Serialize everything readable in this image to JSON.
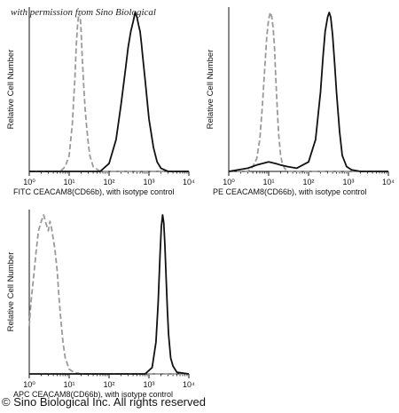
{
  "watermark": "with permission from Sino Biological",
  "copyright": "© Sino Biological Inc. All rights reserved",
  "chart_data": [
    {
      "type": "line",
      "xscale": "log",
      "xlim": [
        1,
        10000
      ],
      "xticks": [
        "10⁰",
        "10¹",
        "10²",
        "10³",
        "10⁴"
      ],
      "ylabel": "Relative Cell Number",
      "xlabel": "FITC  CEACAM8(CD66b),  with isotype control",
      "grid": false,
      "series": [
        {
          "style": "dashed",
          "color": "#9a9a9a",
          "x": [
            1,
            6,
            8,
            10,
            12,
            14,
            15,
            16,
            17,
            18,
            19,
            20,
            21,
            23,
            25,
            27,
            30,
            33,
            40,
            60,
            100,
            10000
          ],
          "y": [
            0,
            0,
            0.03,
            0.1,
            0.3,
            0.6,
            0.78,
            0.9,
            0.97,
            1.0,
            0.97,
            0.88,
            0.75,
            0.55,
            0.4,
            0.3,
            0.18,
            0.1,
            0.03,
            0,
            0,
            0
          ]
        },
        {
          "style": "solid",
          "color": "#111111",
          "x": [
            1,
            60,
            100,
            150,
            200,
            260,
            300,
            350,
            400,
            450,
            500,
            550,
            600,
            650,
            700,
            800,
            900,
            1000,
            1300,
            1600,
            2000,
            3000,
            10000
          ],
          "y": [
            0,
            0,
            0.05,
            0.2,
            0.42,
            0.65,
            0.78,
            0.88,
            0.94,
            1.0,
            0.97,
            0.92,
            0.88,
            0.8,
            0.72,
            0.58,
            0.45,
            0.33,
            0.15,
            0.06,
            0.02,
            0,
            0
          ]
        }
      ]
    },
    {
      "type": "line",
      "xscale": "log",
      "xlim": [
        1,
        10000
      ],
      "xticks": [
        "10⁰",
        "10¹",
        "10²",
        "10³",
        "10⁴"
      ],
      "ylabel": "Relative Cell Number",
      "xlabel": "PE  CEACAM8(CD66b),  with isotype control",
      "grid": false,
      "series": [
        {
          "style": "dashed",
          "color": "#9a9a9a",
          "x": [
            1,
            3,
            4,
            5,
            6,
            7,
            8,
            9,
            10,
            11,
            12,
            13,
            14,
            15,
            16,
            17,
            18,
            20,
            22,
            25,
            30,
            50,
            10000
          ],
          "y": [
            0,
            0,
            0.03,
            0.08,
            0.2,
            0.42,
            0.65,
            0.85,
            0.96,
            1.0,
            0.97,
            0.9,
            0.78,
            0.6,
            0.45,
            0.32,
            0.22,
            0.1,
            0.05,
            0.02,
            0,
            0,
            0
          ]
        },
        {
          "style": "solid",
          "color": "#111111",
          "x": [
            1,
            3,
            5,
            10,
            15,
            20,
            30,
            50,
            100,
            150,
            200,
            230,
            260,
            300,
            330,
            360,
            400,
            450,
            500,
            600,
            700,
            900,
            1200,
            2000,
            10000
          ],
          "y": [
            0,
            0.02,
            0.04,
            0.06,
            0.05,
            0.04,
            0.03,
            0.02,
            0.06,
            0.2,
            0.5,
            0.72,
            0.88,
            0.97,
            1.0,
            0.97,
            0.86,
            0.68,
            0.5,
            0.25,
            0.1,
            0.03,
            0.01,
            0,
            0
          ]
        }
      ]
    },
    {
      "type": "line",
      "xscale": "log",
      "xlim": [
        1,
        10000
      ],
      "xticks": [
        "10⁰",
        "10¹",
        "10²",
        "10³",
        "10⁴"
      ],
      "ylabel": "Relative Cell Number",
      "xlabel": "APC  CEACAM8(CD66b),  with isotype control",
      "grid": false,
      "series": [
        {
          "style": "dashed",
          "color": "#9a9a9a",
          "x": [
            1,
            1.1,
            1.3,
            1.5,
            1.7,
            2,
            2.3,
            2.6,
            3,
            3.3,
            3.6,
            4,
            4.4,
            5,
            5.5,
            6,
            7,
            8,
            10,
            13,
            20,
            10000
          ],
          "y": [
            0.3,
            0.45,
            0.62,
            0.78,
            0.9,
            0.96,
            1.0,
            0.95,
            0.9,
            0.96,
            0.92,
            0.85,
            0.78,
            0.65,
            0.5,
            0.38,
            0.2,
            0.1,
            0.03,
            0.01,
            0,
            0
          ]
        },
        {
          "style": "solid",
          "color": "#111111",
          "x": [
            1,
            800,
            1200,
            1500,
            1700,
            1900,
            2050,
            2200,
            2350,
            2500,
            2700,
            2900,
            3100,
            3500,
            4000,
            5000,
            10000
          ],
          "y": [
            0,
            0,
            0.04,
            0.2,
            0.45,
            0.75,
            0.93,
            1.0,
            0.95,
            0.82,
            0.6,
            0.4,
            0.25,
            0.1,
            0.05,
            0.01,
            0
          ]
        }
      ]
    }
  ]
}
